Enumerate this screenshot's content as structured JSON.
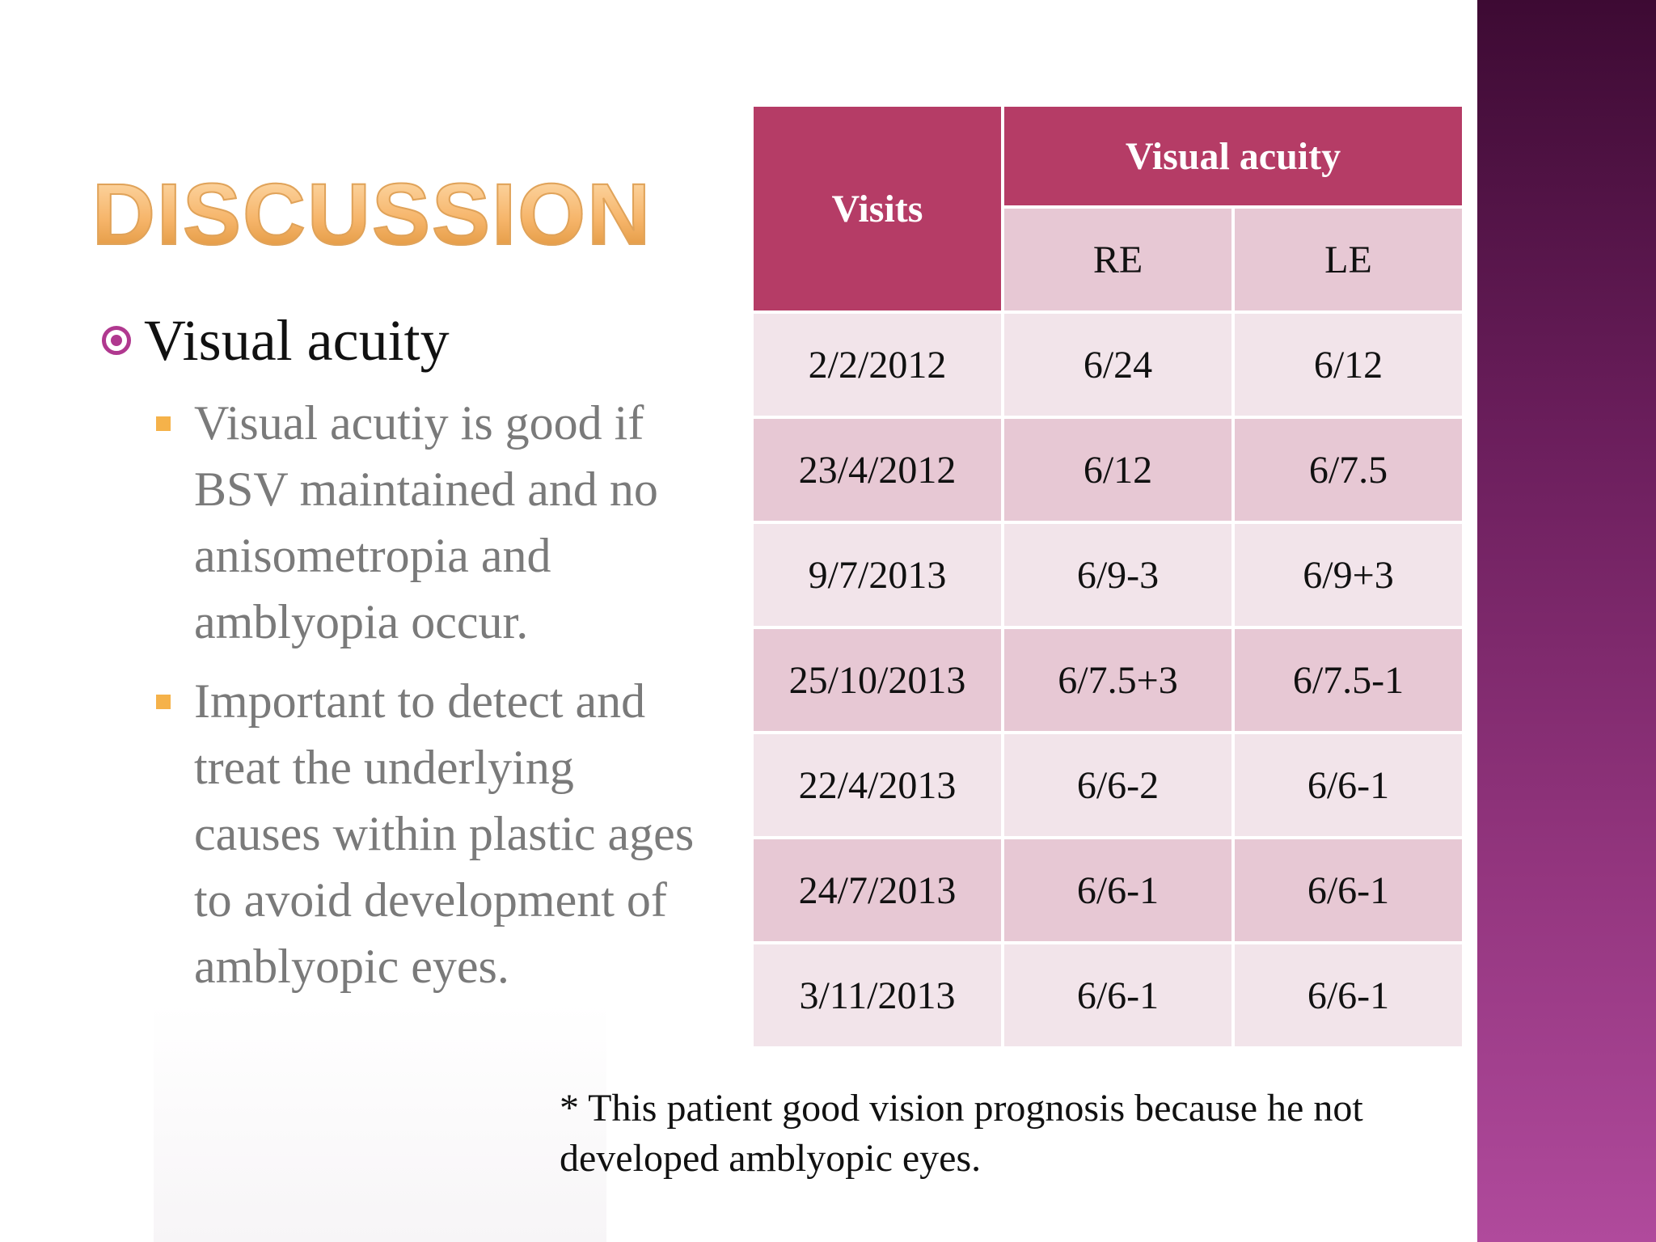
{
  "slide": {
    "title": "DISCUSSION",
    "bullet": {
      "icon": "target-bullet-icon",
      "label": "Visual acuity",
      "sub_bullets": [
        "Visual acutiy is good if BSV maintained and no anisometropia and amblyopia occur.",
        "Important to detect and treat the underlying causes within plastic ages to avoid development of amblyopic eyes."
      ]
    },
    "table": {
      "visits_header": "Visits",
      "group_header": "Visual acuity",
      "re_header": "RE",
      "le_header": "LE",
      "rows": [
        {
          "visit": "2/2/2012",
          "re": "6/24",
          "le": "6/12"
        },
        {
          "visit": "23/4/2012",
          "re": "6/12",
          "le": "6/7.5"
        },
        {
          "visit": "9/7/2013",
          "re": "6/9-3",
          "le": "6/9+3"
        },
        {
          "visit": "25/10/2013",
          "re": "6/7.5+3",
          "le": "6/7.5-1"
        },
        {
          "visit": "22/4/2013",
          "re": "6/6-2",
          "le": "6/6-1"
        },
        {
          "visit": "24/7/2013",
          "re": "6/6-1",
          "le": "6/6-1"
        },
        {
          "visit": "3/11/2013",
          "re": "6/6-1",
          "le": "6/6-1"
        }
      ]
    },
    "footnote": "* This patient good vision prognosis because he not developed amblyopic eyes.",
    "colors": {
      "title_gradient": "#f6b56a",
      "header_bg": "#b53c66",
      "row_light": "#f2e4ea",
      "row_dark": "#e7c8d4",
      "side_band": "#7a2468",
      "sub_bullet_square": "#f5b24a",
      "target_icon": "#b0388f"
    }
  }
}
